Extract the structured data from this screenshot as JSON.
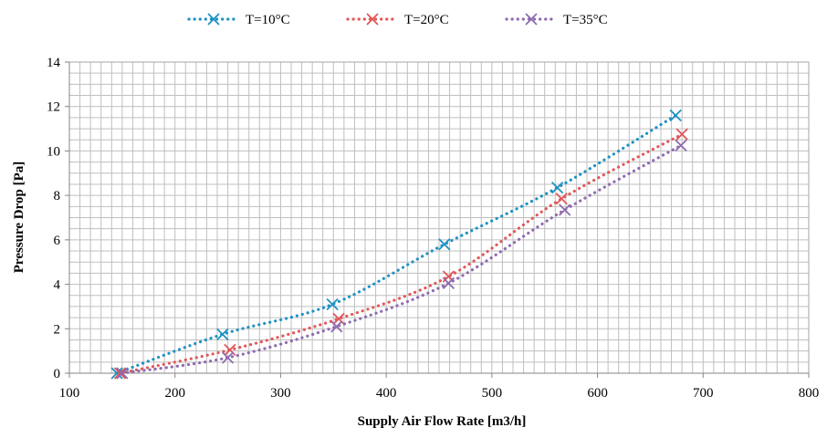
{
  "chart_data": {
    "type": "line",
    "title": "",
    "xlabel": "Supply Air Flow Rate [m3/h]",
    "ylabel": "Pressure Drop [Pa]",
    "xlim": [
      100,
      800
    ],
    "ylim": [
      0,
      14
    ],
    "x_ticks": [
      100,
      200,
      300,
      400,
      500,
      600,
      700,
      800
    ],
    "y_ticks": [
      0,
      2,
      4,
      6,
      8,
      10,
      12,
      14
    ],
    "grid": true,
    "legend_position": "top",
    "line_style": "dotted",
    "marker": "x",
    "series": [
      {
        "name": "T=10°C",
        "color": "#1f91c3",
        "x": [
          145,
          245,
          349,
          455,
          562,
          674
        ],
        "y": [
          0.0,
          1.75,
          3.1,
          5.8,
          8.35,
          11.6
        ]
      },
      {
        "name": "T=20°C",
        "color": "#e15759",
        "x": [
          148,
          252,
          355,
          459,
          566,
          680
        ],
        "y": [
          0.0,
          1.05,
          2.45,
          4.35,
          7.85,
          10.75
        ]
      },
      {
        "name": "T=35°C",
        "color": "#8e6bb0",
        "x": [
          150,
          250,
          353,
          459,
          569,
          679
        ],
        "y": [
          0.0,
          0.7,
          2.1,
          4.05,
          7.35,
          10.25
        ]
      }
    ]
  }
}
